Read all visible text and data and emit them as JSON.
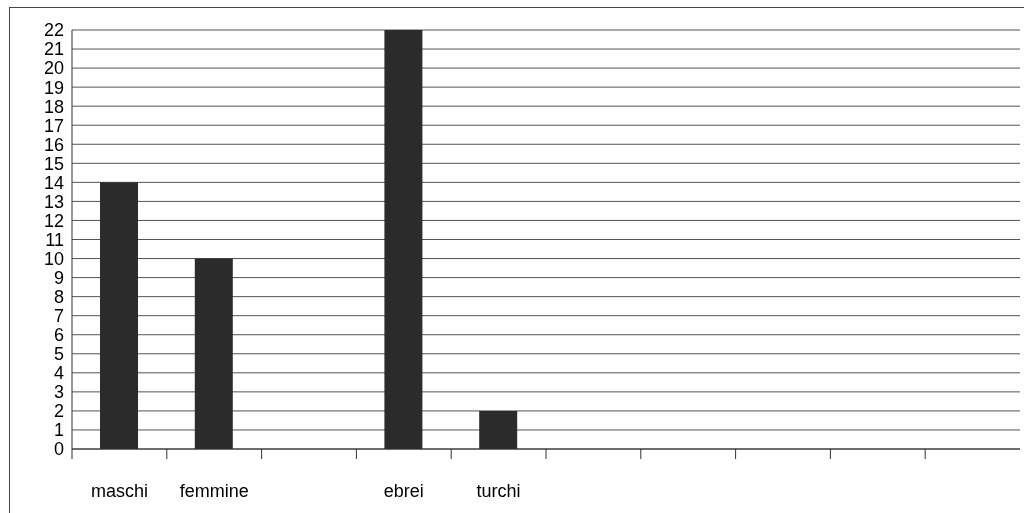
{
  "chart_data": {
    "type": "bar",
    "categories": [
      "maschi",
      "femmine",
      null,
      "ebrei",
      "turchi",
      null,
      null,
      null,
      null,
      null
    ],
    "values": [
      14,
      10,
      null,
      22,
      2,
      null,
      null,
      null,
      null,
      null
    ],
    "color": "#2b2b2b",
    "ylim": [
      0,
      22
    ],
    "yticks": [
      0,
      1,
      2,
      3,
      4,
      5,
      6,
      7,
      8,
      9,
      10,
      11,
      12,
      13,
      14,
      15,
      16,
      17,
      18,
      19,
      20,
      21,
      22
    ],
    "grid": "y",
    "legend": false
  }
}
